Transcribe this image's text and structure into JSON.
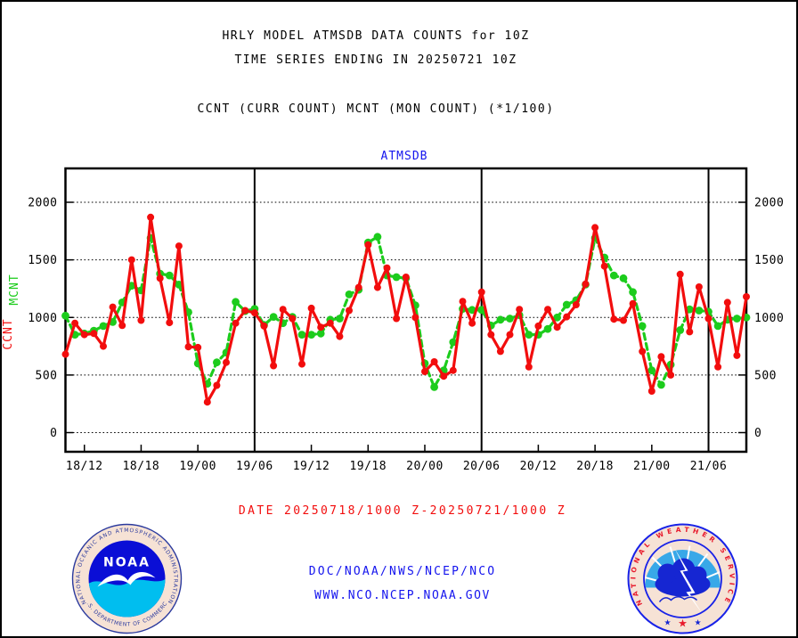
{
  "page": {
    "title_line1": "HRLY MODEL ATMSDB DATA COUNTS for 10Z",
    "title_line2": "TIME SERIES ENDING IN 20250721 10Z",
    "subtitle": "CCNT (CURR COUNT) MCNT (MON COUNT) (*1/100)",
    "chart_heading": "ATMSDB",
    "date_range": "DATE 20250718/1000 Z-20250721/1000 Z",
    "org_line": "DOC/NOAA/NWS/NCEP/NCO",
    "url_line": "WWW.NCO.NCEP.NOAA.GOV"
  },
  "colors": {
    "ccnt_red": "#f20d0d",
    "mcnt_green": "#1ccc1c",
    "heading_blue": "#1414ee",
    "axis_black": "#000000"
  },
  "left_axis_labels": {
    "ccnt": "CCNT",
    "mcnt": "MCNT"
  },
  "noaa_logo": {
    "top_text": "NATIONAL OCEANIC AND ATMOSPHERIC ADMINISTRATION",
    "bottom_text": "U.S. DEPARTMENT OF COMMERCE",
    "center_text": "NOAA"
  },
  "nws_logo": {
    "ring_text": "NATIONAL WEATHER SERVICE"
  },
  "chart_data": {
    "type": "line",
    "title": "ATMSDB",
    "xlabel": "",
    "ylabel": "CCNT / MCNT (*1/100)",
    "ylim": [
      0,
      2000
    ],
    "y_ticks": [
      0,
      500,
      1000,
      1500,
      2000
    ],
    "grid": "dotted horizontal at each y tick",
    "legend_position": "none (labels on left axis)",
    "x": [
      "18/10",
      "18/11",
      "18/12",
      "18/13",
      "18/14",
      "18/15",
      "18/16",
      "18/17",
      "18/18",
      "18/19",
      "18/20",
      "18/21",
      "18/22",
      "18/23",
      "19/00",
      "19/01",
      "19/02",
      "19/03",
      "19/04",
      "19/05",
      "19/06",
      "19/07",
      "19/08",
      "19/09",
      "19/10",
      "19/11",
      "19/12",
      "19/13",
      "19/14",
      "19/15",
      "19/16",
      "19/17",
      "19/18",
      "19/19",
      "19/20",
      "19/21",
      "19/22",
      "19/23",
      "20/00",
      "20/01",
      "20/02",
      "20/03",
      "20/04",
      "20/05",
      "20/06",
      "20/07",
      "20/08",
      "20/09",
      "20/10",
      "20/11",
      "20/12",
      "20/13",
      "20/14",
      "20/15",
      "20/16",
      "20/17",
      "20/18",
      "20/19",
      "20/20",
      "20/21",
      "20/22",
      "20/23",
      "21/00",
      "21/01",
      "21/02",
      "21/03",
      "21/04",
      "21/05",
      "21/06",
      "21/07",
      "21/08",
      "21/09",
      "21/10"
    ],
    "x_tick_labels": [
      "18/12",
      "18/18",
      "19/00",
      "19/06",
      "19/12",
      "19/18",
      "20/00",
      "20/06",
      "20/12",
      "20/18",
      "21/00",
      "21/06"
    ],
    "x_tick_hours": [
      2,
      8,
      14,
      20,
      26,
      32,
      38,
      44,
      50,
      56,
      62,
      68
    ],
    "day_line_hours": [
      20,
      44,
      68
    ],
    "series": [
      {
        "name": "CCNT",
        "color": "#f20d0d",
        "style": "solid",
        "values": [
          680,
          950,
          850,
          860,
          750,
          1090,
          930,
          1500,
          975,
          1870,
          1340,
          955,
          1620,
          745,
          740,
          265,
          410,
          610,
          950,
          1060,
          1040,
          925,
          580,
          1070,
          990,
          595,
          1080,
          915,
          950,
          835,
          1060,
          1260,
          1630,
          1260,
          1430,
          990,
          1350,
          1000,
          530,
          615,
          490,
          540,
          1140,
          950,
          1220,
          850,
          705,
          850,
          1070,
          570,
          925,
          1070,
          915,
          1005,
          1110,
          1290,
          1780,
          1445,
          985,
          975,
          1120,
          705,
          360,
          660,
          500,
          1375,
          875,
          1265,
          990,
          570,
          1130,
          670,
          1180
        ]
      },
      {
        "name": "MCNT",
        "color": "#1ccc1c",
        "style": "dashed",
        "values": [
          1015,
          850,
          860,
          885,
          925,
          960,
          1130,
          1275,
          1235,
          1690,
          1380,
          1365,
          1285,
          1045,
          600,
          425,
          610,
          695,
          1135,
          1055,
          1075,
          935,
          1005,
          950,
          1005,
          850,
          850,
          860,
          980,
          990,
          1200,
          1240,
          1650,
          1700,
          1365,
          1350,
          1340,
          1105,
          600,
          395,
          540,
          785,
          1075,
          1065,
          1065,
          930,
          980,
          990,
          1020,
          850,
          850,
          900,
          1000,
          1110,
          1150,
          1285,
          1690,
          1520,
          1365,
          1340,
          1220,
          925,
          540,
          415,
          590,
          890,
          1070,
          1060,
          1050,
          925,
          980,
          990,
          1000
        ]
      }
    ]
  }
}
